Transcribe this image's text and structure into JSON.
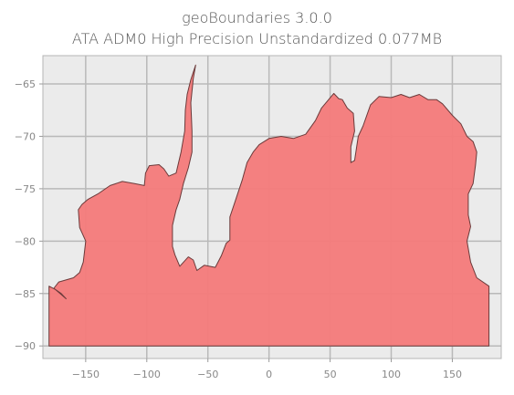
{
  "figure": {
    "title_line1": "geoBoundaries 3.0.0",
    "title_line2": "ATA ADM0 High Precision Unstandardized 0.077MB"
  },
  "chart_data": {
    "type": "map",
    "region": "Antarctica (ATA ADM0)",
    "xlim": [
      -185,
      190
    ],
    "ylim": [
      -91.2,
      -62.3
    ],
    "xticks": [
      -150,
      -100,
      -50,
      0,
      50,
      100,
      150
    ],
    "yticks": [
      -65,
      -70,
      -75,
      -80,
      -85,
      -90
    ],
    "xtick_labels": [
      "−150",
      "−100",
      "−50",
      "0",
      "50",
      "100",
      "150"
    ],
    "ytick_labels": [
      "−65",
      "−70",
      "−75",
      "−80",
      "−85",
      "−90"
    ],
    "grid": true,
    "fill_color": "#f47a7a",
    "edge_color": "#6b3a3a",
    "background_color": "#ebebeb",
    "outline_lonlat": [
      [
        -180,
        -90
      ],
      [
        -180,
        -84.3
      ],
      [
        -175,
        -84.6
      ],
      [
        -170,
        -85.0
      ],
      [
        -166,
        -85.5
      ],
      [
        -170,
        -85.1
      ],
      [
        -176,
        -84.5
      ],
      [
        -172,
        -83.9
      ],
      [
        -160,
        -83.5
      ],
      [
        -155,
        -83.0
      ],
      [
        -152,
        -82.0
      ],
      [
        -150,
        -80.0
      ],
      [
        -155,
        -78.7
      ],
      [
        -156,
        -77.0
      ],
      [
        -153,
        -76.5
      ],
      [
        -148,
        -76.0
      ],
      [
        -140,
        -75.5
      ],
      [
        -130,
        -74.7
      ],
      [
        -120,
        -74.3
      ],
      [
        -110,
        -74.5
      ],
      [
        -102,
        -74.7
      ],
      [
        -101,
        -73.5
      ],
      [
        -98,
        -72.8
      ],
      [
        -90,
        -72.7
      ],
      [
        -86,
        -73.1
      ],
      [
        -82,
        -73.8
      ],
      [
        -76,
        -73.5
      ],
      [
        -72,
        -71.5
      ],
      [
        -69,
        -69.5
      ],
      [
        -68.5,
        -67.5
      ],
      [
        -67,
        -66.0
      ],
      [
        -64,
        -64.6
      ],
      [
        -60,
        -63.2
      ],
      [
        -62,
        -64.5
      ],
      [
        -64,
        -66.8
      ],
      [
        -63,
        -69.5
      ],
      [
        -63,
        -71.5
      ],
      [
        -66,
        -73.0
      ],
      [
        -70,
        -74.5
      ],
      [
        -73,
        -76.0
      ],
      [
        -76,
        -77.0
      ],
      [
        -79,
        -78.5
      ],
      [
        -79,
        -80.5
      ],
      [
        -77,
        -81.3
      ],
      [
        -73,
        -82.4
      ],
      [
        -66,
        -81.5
      ],
      [
        -62,
        -81.8
      ],
      [
        -59,
        -82.8
      ],
      [
        -53,
        -82.3
      ],
      [
        -44,
        -82.5
      ],
      [
        -39,
        -81.4
      ],
      [
        -35,
        -80.2
      ],
      [
        -32,
        -79.9
      ],
      [
        -32,
        -77.7
      ],
      [
        -28,
        -76.3
      ],
      [
        -22,
        -74.2
      ],
      [
        -18,
        -72.5
      ],
      [
        -13,
        -71.5
      ],
      [
        -8,
        -70.8
      ],
      [
        0,
        -70.2
      ],
      [
        10,
        -70.0
      ],
      [
        20,
        -70.2
      ],
      [
        30,
        -69.8
      ],
      [
        38,
        -68.5
      ],
      [
        43,
        -67.3
      ],
      [
        48,
        -66.6
      ],
      [
        53,
        -65.9
      ],
      [
        57,
        -66.4
      ],
      [
        60,
        -66.5
      ],
      [
        64,
        -67.3
      ],
      [
        69,
        -67.8
      ],
      [
        70,
        -69.5
      ],
      [
        67,
        -71.0
      ],
      [
        67,
        -72.5
      ],
      [
        70,
        -72.3
      ],
      [
        73,
        -70.0
      ],
      [
        77,
        -69.0
      ],
      [
        83,
        -67.0
      ],
      [
        90,
        -66.2
      ],
      [
        100,
        -66.3
      ],
      [
        108,
        -66.0
      ],
      [
        115,
        -66.3
      ],
      [
        123,
        -66.0
      ],
      [
        130,
        -66.5
      ],
      [
        137,
        -66.5
      ],
      [
        142,
        -66.9
      ],
      [
        150,
        -68.0
      ],
      [
        157,
        -68.8
      ],
      [
        162,
        -70.0
      ],
      [
        167,
        -70.5
      ],
      [
        170,
        -71.5
      ],
      [
        169,
        -72.7
      ],
      [
        167,
        -74.5
      ],
      [
        163,
        -75.5
      ],
      [
        163,
        -77.5
      ],
      [
        165,
        -78.6
      ],
      [
        162,
        -80.0
      ],
      [
        165,
        -82.0
      ],
      [
        170,
        -83.5
      ],
      [
        180,
        -84.3
      ],
      [
        180,
        -90
      ]
    ]
  }
}
